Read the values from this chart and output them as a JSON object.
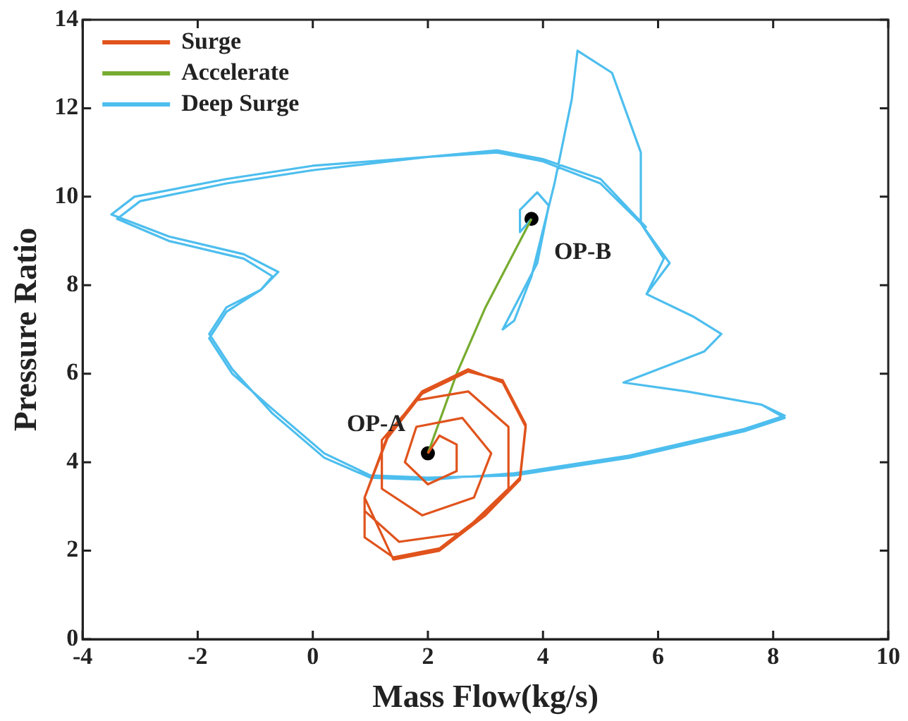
{
  "chart_data": {
    "type": "line",
    "xlabel": "Mass Flow(kg/s)",
    "ylabel": "Pressure Ratio",
    "xlim": [
      -4,
      10
    ],
    "xticks": [
      -4,
      -2,
      0,
      2,
      4,
      6,
      8,
      10
    ],
    "ylim": [
      0,
      14
    ],
    "yticks": [
      0,
      2,
      4,
      6,
      8,
      10,
      12,
      14
    ],
    "grid": false,
    "legend": "top left",
    "marker": "none",
    "line_style": "solid",
    "series": [
      {
        "name": "Surge",
        "color": "#e0531c",
        "x": [
          2,
          2.2,
          2.5,
          2.5,
          2.0,
          1.6,
          1.8,
          2.6,
          3.1,
          2.8,
          1.9,
          1.2,
          1.2,
          1.8,
          2.7,
          3.4,
          3.4,
          2.6,
          1.5,
          0.9,
          0.9,
          1.4,
          2.2,
          3.0,
          3.6,
          3.7,
          3.3,
          2.7,
          1.9,
          1.3,
          0.9,
          0.9,
          1.4,
          2.2,
          3.0,
          3.6,
          3.7,
          3.3,
          2.7,
          1.9,
          1.3,
          0.9
        ],
        "values": [
          4.2,
          4.6,
          4.4,
          3.8,
          3.5,
          4.0,
          4.8,
          5.0,
          4.2,
          3.2,
          2.8,
          3.4,
          4.5,
          5.4,
          5.6,
          4.8,
          3.4,
          2.4,
          2.2,
          2.9,
          3.2,
          1.8,
          2.0,
          2.8,
          3.6,
          4.8,
          5.8,
          6.1,
          5.6,
          4.6,
          3.2,
          2.3,
          1.85,
          2.05,
          2.85,
          3.65,
          4.85,
          5.85,
          6.05,
          5.55,
          4.55,
          3.2
        ]
      },
      {
        "name": "Accelerate",
        "color": "#77ac30",
        "x": [
          2,
          2.5,
          3.0,
          3.8
        ],
        "values": [
          4.2,
          6.0,
          7.5,
          9.5
        ]
      },
      {
        "name": "Deep Surge",
        "color": "#4dbeee",
        "x": [
          3.8,
          3.6,
          3.6,
          3.9,
          4.1,
          3.9,
          3.5,
          3.3,
          3.5,
          3.8,
          4.2,
          4.5,
          4.6,
          5.2,
          5.7,
          5.7,
          6.2,
          5.8,
          6.6,
          7.1,
          6.8,
          5.8,
          5.4,
          6.5,
          7.8,
          8.2,
          7.5,
          5.5,
          3.5,
          2,
          1,
          0.2,
          -0.7,
          -1.4,
          -1.8,
          -1.5,
          -0.9,
          -0.7,
          -1.2,
          -2.5,
          -3.4,
          -3,
          -1.5,
          0,
          2,
          3.2,
          4,
          5,
          5.7,
          6.1,
          5.8,
          6.6,
          7.1,
          6.8,
          5.8,
          5.4,
          6.5,
          7.8,
          8.2,
          7.5,
          5.5,
          3.5,
          2,
          1,
          0.2,
          -0.7,
          -1.4,
          -1.8,
          -1.5,
          -0.9,
          -0.6,
          -1.2,
          -2.5,
          -3.5,
          -3.1,
          -1.5,
          0,
          2,
          3.2,
          4,
          5,
          5.8
        ],
        "values": [
          9.5,
          9.2,
          9.7,
          10.1,
          9.8,
          8.5,
          7.5,
          7.0,
          7.2,
          8.2,
          10.3,
          12.2,
          13.3,
          12.8,
          11.0,
          9.4,
          8.5,
          7.8,
          7.3,
          6.9,
          6.5,
          6.0,
          5.8,
          5.6,
          5.3,
          5.0,
          4.7,
          4.1,
          3.7,
          3.65,
          3.7,
          4.2,
          5.2,
          6.0,
          6.8,
          7.4,
          7.9,
          8.2,
          8.6,
          9.0,
          9.5,
          9.9,
          10.3,
          10.6,
          10.9,
          11.0,
          10.8,
          10.3,
          9.4,
          8.6,
          7.8,
          7.3,
          6.9,
          6.5,
          6.0,
          5.8,
          5.6,
          5.3,
          5.05,
          4.75,
          4.15,
          3.75,
          3.6,
          3.65,
          4.1,
          5.1,
          6.1,
          6.9,
          7.5,
          7.9,
          8.3,
          8.7,
          9.1,
          9.6,
          10.0,
          10.4,
          10.7,
          10.9,
          11.05,
          10.85,
          10.4,
          9.3
        ]
      },
      {
        "type": "scatter",
        "marker": "circle",
        "color": "#000000",
        "x": [
          2,
          3.8
        ],
        "values": [
          4.2,
          9.5
        ]
      }
    ],
    "annotations": [
      {
        "text": "OP-A",
        "x": 2,
        "y": 4.2
      },
      {
        "text": "OP-B",
        "x": 3.8,
        "y": 9.5
      }
    ]
  }
}
